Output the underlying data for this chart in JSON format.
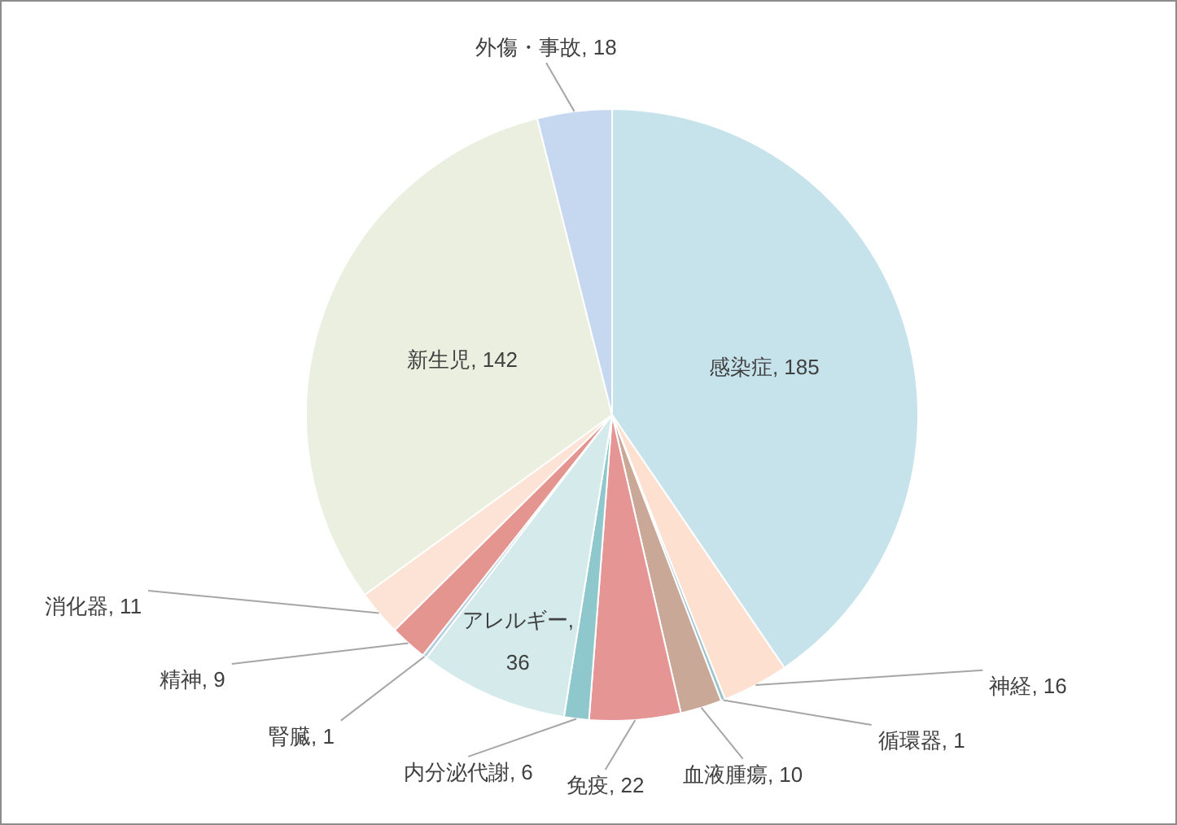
{
  "chart_data": {
    "type": "pie",
    "categories": [
      "感染症",
      "神経",
      "循環器",
      "血液腫瘍",
      "免疫",
      "内分泌代謝",
      "アレルギー",
      "腎臓",
      "精神",
      "消化器",
      "新生児",
      "外傷・事故"
    ],
    "values": [
      185,
      16,
      1,
      10,
      22,
      6,
      36,
      1,
      9,
      11,
      142,
      18
    ],
    "colors": [
      "#c6e3ec",
      "#fde0d0",
      "#9dc3cf",
      "#c9a898",
      "#e69595",
      "#8ec8cc",
      "#d5eaea",
      "#b4cfe0",
      "#e49590",
      "#fde3d6",
      "#eaefdf",
      "#c6d8ef"
    ],
    "value_labels": [
      ", 185",
      ", 16",
      ", 1",
      ", 10",
      ", 22",
      ", 6",
      ", 36",
      ", 1",
      ", 9",
      ", 11",
      ", 142",
      ", 18"
    ]
  }
}
